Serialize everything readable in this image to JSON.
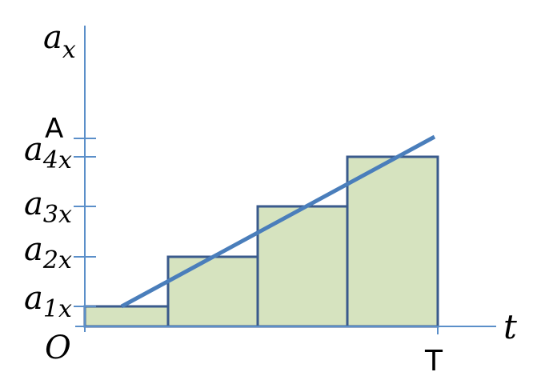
{
  "diagram": {
    "y_axis_label": "a",
    "y_axis_label_sub": "x",
    "x_axis_label": "t",
    "origin_label": "O",
    "end_label": "T",
    "line_end_label": "A",
    "levels": [
      {
        "main": "a",
        "sub": "1x"
      },
      {
        "main": "a",
        "sub": "2x"
      },
      {
        "main": "a",
        "sub": "3x"
      },
      {
        "main": "a",
        "sub": "4x"
      }
    ],
    "colors": {
      "axis": "#5b8fc9",
      "step_outline": "#3a5a8c",
      "step_fill": "#d6e3bf",
      "line": "#4a7ebb"
    }
  }
}
